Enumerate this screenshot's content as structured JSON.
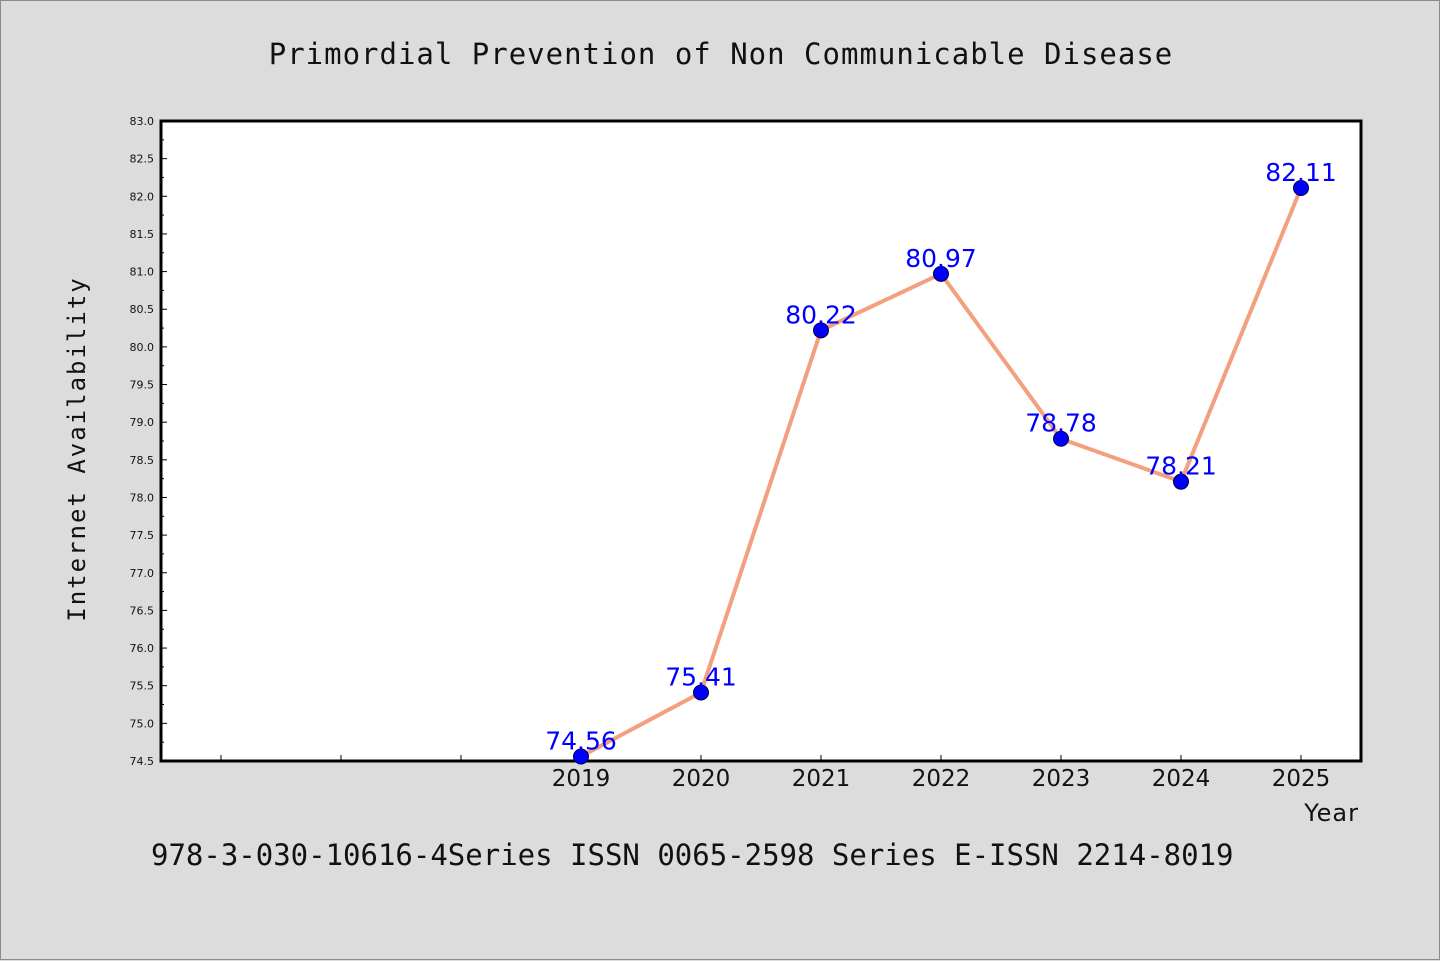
{
  "chart_data": {
    "type": "line",
    "title": "Primordial Prevention of Non Communicable Disease",
    "xlabel": "Year",
    "ylabel": "Internet Availability",
    "x": [
      "2019",
      "2020",
      "2021",
      "2022",
      "2023",
      "2024",
      "2025"
    ],
    "values": [
      74.56,
      75.41,
      80.22,
      80.97,
      78.78,
      78.21,
      82.11
    ],
    "data_labels": [
      "74.56",
      "75.41",
      "80.22",
      "80.97",
      "78.78",
      "78.21",
      "82.11"
    ],
    "ylim": [
      74.5,
      83.0
    ],
    "y_ticks": [
      "74.5",
      "75.0",
      "75.5",
      "76.0",
      "76.5",
      "77.0",
      "77.5",
      "78.0",
      "78.5",
      "79.0",
      "79.5",
      "80.0",
      "80.5",
      "81.0",
      "81.5",
      "82.0",
      "82.5",
      "83.0"
    ],
    "grid": false,
    "legend": "none",
    "line_color": "#f4a07e",
    "marker_color": "#0000ff",
    "label_color": "#0000ff"
  },
  "footer": "978-3-030-10616-4Series ISSN 0065-2598 Series E-ISSN 2214-8019"
}
